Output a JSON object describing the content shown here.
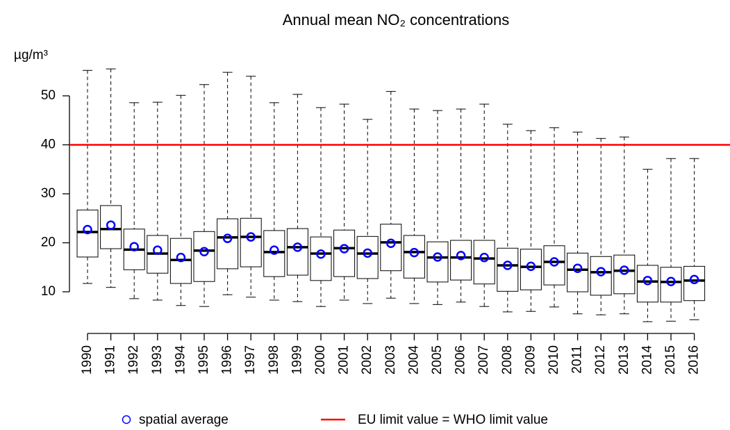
{
  "chart_data": {
    "type": "box",
    "title": "Annual mean NO₂ concentrations",
    "y_unit": "µg/m³",
    "categories": [
      "1990",
      "1991",
      "1992",
      "1993",
      "1994",
      "1995",
      "1996",
      "1997",
      "1998",
      "1999",
      "2000",
      "2001",
      "2002",
      "2003",
      "2004",
      "2005",
      "2006",
      "2007",
      "2008",
      "2009",
      "2010",
      "2011",
      "2012",
      "2013",
      "2014",
      "2015",
      "2016"
    ],
    "whisker_low": [
      11.7,
      10.9,
      8.6,
      8.3,
      7.2,
      7.0,
      9.4,
      8.9,
      8.3,
      8.0,
      7.0,
      8.3,
      7.6,
      8.7,
      7.6,
      7.4,
      7.9,
      7.0,
      5.9,
      6.0,
      6.9,
      5.5,
      5.3,
      5.5,
      3.9,
      4.0,
      4.3
    ],
    "q1": [
      17.1,
      18.8,
      14.5,
      13.8,
      11.7,
      12.1,
      14.7,
      15.1,
      13.1,
      13.4,
      12.3,
      13.1,
      12.7,
      14.3,
      12.8,
      12.0,
      12.4,
      11.6,
      10.1,
      10.4,
      11.4,
      10.0,
      9.3,
      9.6,
      7.9,
      7.9,
      8.2
    ],
    "median": [
      22.2,
      22.8,
      18.6,
      17.8,
      16.5,
      18.4,
      21.1,
      21.2,
      18.1,
      19.1,
      17.8,
      18.9,
      17.8,
      20.1,
      18.1,
      17.0,
      17.0,
      16.8,
      15.4,
      15.1,
      16.1,
      14.5,
      14.0,
      14.3,
      12.1,
      12.0,
      12.3
    ],
    "q3": [
      26.7,
      27.6,
      22.8,
      21.5,
      20.9,
      22.3,
      24.9,
      25.0,
      22.5,
      22.9,
      21.2,
      22.6,
      21.3,
      23.8,
      21.5,
      20.2,
      20.5,
      20.5,
      18.9,
      18.7,
      19.4,
      17.9,
      17.2,
      17.5,
      15.4,
      15.0,
      15.2
    ],
    "whisker_high": [
      55.2,
      55.5,
      48.6,
      48.7,
      50.1,
      52.3,
      54.8,
      54.0,
      48.6,
      50.3,
      47.6,
      48.3,
      45.2,
      50.9,
      47.3,
      47.0,
      47.3,
      48.3,
      44.2,
      42.9,
      43.5,
      42.6,
      41.3,
      41.6,
      35.0,
      37.2,
      37.2
    ],
    "mean": {
      "name": "spatial average",
      "color": "#0000ff",
      "values": [
        22.7,
        23.6,
        19.2,
        18.5,
        17.0,
        18.2,
        20.9,
        21.2,
        18.5,
        19.1,
        17.7,
        18.8,
        17.9,
        19.9,
        18.0,
        17.1,
        17.4,
        17.0,
        15.4,
        15.2,
        16.1,
        14.8,
        14.1,
        14.4,
        12.3,
        12.1,
        12.5
      ]
    },
    "limit": {
      "name": "EU limit value = WHO limit value",
      "color": "#ff0000",
      "value": 40
    },
    "ylim": [
      3,
      57
    ],
    "yticks": [
      10,
      20,
      30,
      40,
      50
    ]
  }
}
